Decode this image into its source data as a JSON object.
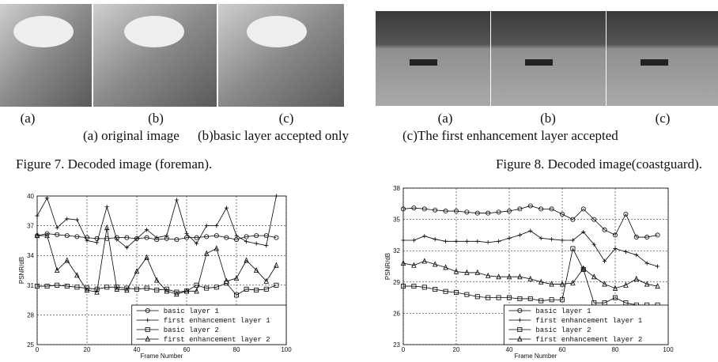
{
  "figure7": {
    "panel_labels": [
      "(a)",
      "(b)",
      "(c)"
    ],
    "legend": [
      "(a) original image",
      "(b)basic layer accepted only",
      "(c)The first enhancement layer accepted"
    ],
    "caption": "Figure 7. Decoded image (foreman)."
  },
  "figure8": {
    "panel_labels": [
      "(a)",
      "(b)",
      "(c)"
    ],
    "caption": "Figure 8. Decoded image(coastguard)."
  },
  "chart_data": [
    {
      "type": "line",
      "xlabel": "Frame Number",
      "ylabel": "PSNR/dB",
      "xlim": [
        0,
        100
      ],
      "xticks": [
        0,
        20,
        40,
        60,
        80,
        100
      ],
      "ylim": [
        25,
        40
      ],
      "yticks": [
        25,
        28,
        31,
        34,
        37,
        40
      ],
      "grid": true,
      "legend": "lower right",
      "x": [
        0,
        4,
        8,
        12,
        16,
        20,
        24,
        28,
        32,
        36,
        40,
        44,
        48,
        52,
        56,
        60,
        64,
        68,
        72,
        76,
        80,
        84,
        88,
        92,
        96
      ],
      "series": [
        {
          "name": "basic layer 1",
          "color": "#000000",
          "marker": "circle",
          "values": [
            36.0,
            36.2,
            36.1,
            36.0,
            35.9,
            35.8,
            35.7,
            35.7,
            35.8,
            35.8,
            35.7,
            35.8,
            35.6,
            35.7,
            35.6,
            35.8,
            35.8,
            35.9,
            36.0,
            35.8,
            35.6,
            35.9,
            36.0,
            36.0,
            35.8
          ]
        },
        {
          "name": "first enhancement layer 1",
          "color": "#000000",
          "marker": "plus",
          "values": [
            38.0,
            39.8,
            36.8,
            37.7,
            37.6,
            35.5,
            35.3,
            38.9,
            35.6,
            34.8,
            35.7,
            36.6,
            35.8,
            36.0,
            39.6,
            36.2,
            35.2,
            37.0,
            37.0,
            38.8,
            36.0,
            35.4,
            35.2,
            35.0,
            40.0
          ]
        },
        {
          "name": "basic layer 2",
          "color": "#000000",
          "marker": "square",
          "values": [
            30.9,
            30.9,
            31.0,
            30.9,
            30.8,
            30.7,
            30.6,
            30.8,
            30.8,
            30.7,
            30.6,
            30.7,
            30.5,
            30.6,
            30.3,
            30.4,
            31.0,
            30.7,
            30.8,
            31.2,
            30.0,
            30.6,
            30.5,
            30.6,
            31.0
          ]
        },
        {
          "name": "first enhancement layer 2",
          "color": "#000000",
          "marker": "triangle",
          "values": [
            36.0,
            36.0,
            32.5,
            33.5,
            32.0,
            30.5,
            30.3,
            36.8,
            30.6,
            30.5,
            32.4,
            33.8,
            31.5,
            30.4,
            30.1,
            30.4,
            30.4,
            34.2,
            34.7,
            31.4,
            31.7,
            33.5,
            32.5,
            31.4,
            33.0
          ]
        }
      ]
    },
    {
      "type": "line",
      "xlabel": "Frame Number",
      "ylabel": "PSNR/dB",
      "xlim": [
        0,
        100
      ],
      "xticks": [
        0,
        20,
        40,
        60,
        80,
        100
      ],
      "ylim": [
        23,
        38
      ],
      "yticks": [
        23,
        26,
        29,
        32,
        35,
        38
      ],
      "grid": true,
      "legend": "lower right",
      "x": [
        0,
        4,
        8,
        12,
        16,
        20,
        24,
        28,
        32,
        36,
        40,
        44,
        48,
        52,
        56,
        60,
        64,
        68,
        72,
        76,
        80,
        84,
        88,
        92,
        96
      ],
      "series": [
        {
          "name": "basic layer 1",
          "color": "#000000",
          "marker": "circle",
          "values": [
            36.0,
            36.1,
            36.0,
            35.9,
            35.8,
            35.8,
            35.7,
            35.6,
            35.6,
            35.7,
            35.8,
            36.0,
            36.3,
            36.0,
            36.0,
            35.5,
            35.0,
            36.0,
            35.0,
            34.0,
            33.5,
            35.5,
            33.3,
            33.3,
            33.5
          ]
        },
        {
          "name": "first enhancement layer 1",
          "color": "#000000",
          "marker": "plus",
          "values": [
            33.0,
            33.0,
            33.4,
            33.1,
            32.9,
            32.9,
            32.9,
            32.9,
            32.8,
            32.9,
            33.2,
            33.5,
            33.9,
            33.2,
            33.1,
            33.0,
            33.0,
            33.8,
            32.6,
            31.0,
            32.2,
            31.9,
            31.6,
            30.8,
            30.5
          ]
        },
        {
          "name": "basic layer 2",
          "color": "#000000",
          "marker": "square",
          "values": [
            28.6,
            28.6,
            28.5,
            28.3,
            28.1,
            28.0,
            27.8,
            27.6,
            27.5,
            27.5,
            27.5,
            27.4,
            27.4,
            27.2,
            27.3,
            27.3,
            32.2,
            30.2,
            27.0,
            27.0,
            27.5,
            27.0,
            26.8,
            26.8,
            26.8
          ]
        },
        {
          "name": "first enhancement layer 2",
          "color": "#000000",
          "marker": "triangle",
          "values": [
            30.8,
            30.6,
            31.0,
            30.7,
            30.4,
            30.0,
            29.9,
            29.9,
            29.6,
            29.5,
            29.5,
            29.5,
            29.3,
            29.0,
            28.8,
            28.8,
            28.9,
            30.3,
            29.5,
            28.8,
            28.4,
            28.7,
            29.3,
            28.8,
            28.6
          ]
        }
      ]
    }
  ]
}
